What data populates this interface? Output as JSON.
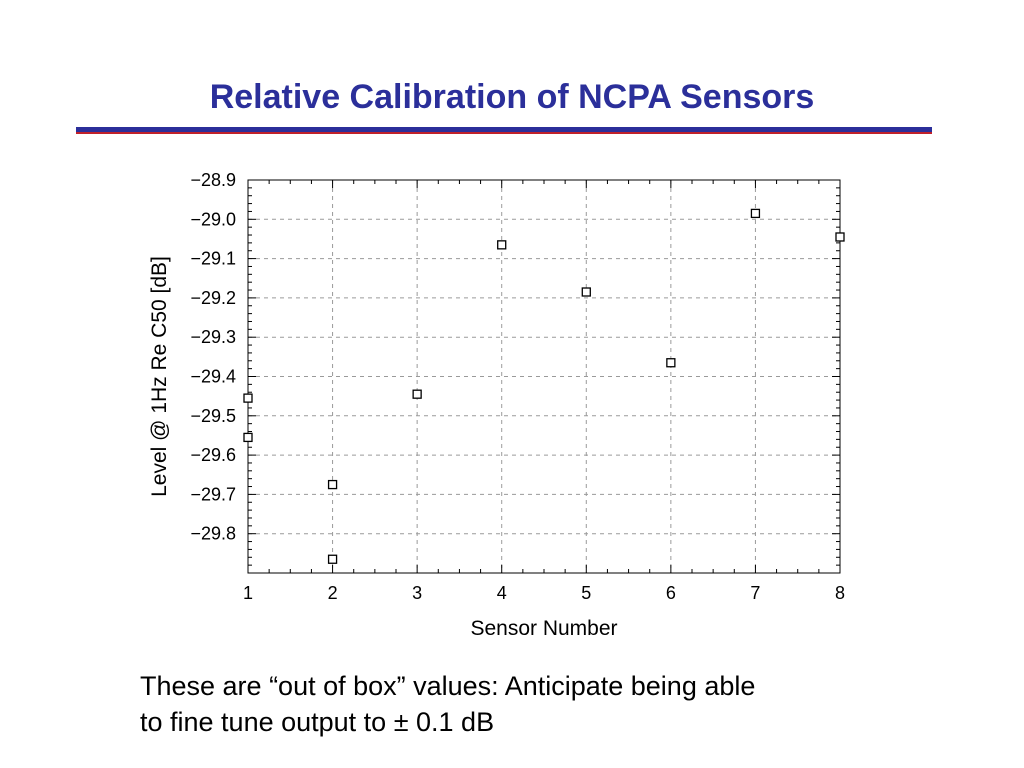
{
  "slide": {
    "title": "Relative Calibration of NCPA Sensors",
    "caption_line1": "These are “out of box” values: Anticipate being able",
    "caption_line2": "to fine tune output to ± 0.1 dB",
    "title_color": "#2b2f9a",
    "rule_accent_color": "#c0202a"
  },
  "chart_data": {
    "type": "scatter",
    "title": "",
    "xlabel": "Sensor Number",
    "ylabel": "Level @ 1Hz Re C50 [dB]",
    "xlim": [
      1,
      8
    ],
    "ylim": [
      -29.9,
      -28.9
    ],
    "xticks": [
      1,
      2,
      3,
      4,
      5,
      6,
      7,
      8
    ],
    "yticks": [
      -28.9,
      -29.0,
      -29.1,
      -29.2,
      -29.3,
      -29.4,
      -29.5,
      -29.6,
      -29.7,
      -29.8
    ],
    "grid": true,
    "marker": "open-square",
    "points": [
      {
        "x": 1,
        "y": -29.455
      },
      {
        "x": 1,
        "y": -29.555
      },
      {
        "x": 2,
        "y": -29.675
      },
      {
        "x": 2,
        "y": -29.865
      },
      {
        "x": 3,
        "y": -29.445
      },
      {
        "x": 4,
        "y": -29.065
      },
      {
        "x": 5,
        "y": -29.185
      },
      {
        "x": 6,
        "y": -29.365
      },
      {
        "x": 7,
        "y": -28.985
      },
      {
        "x": 8,
        "y": -29.045
      }
    ]
  }
}
